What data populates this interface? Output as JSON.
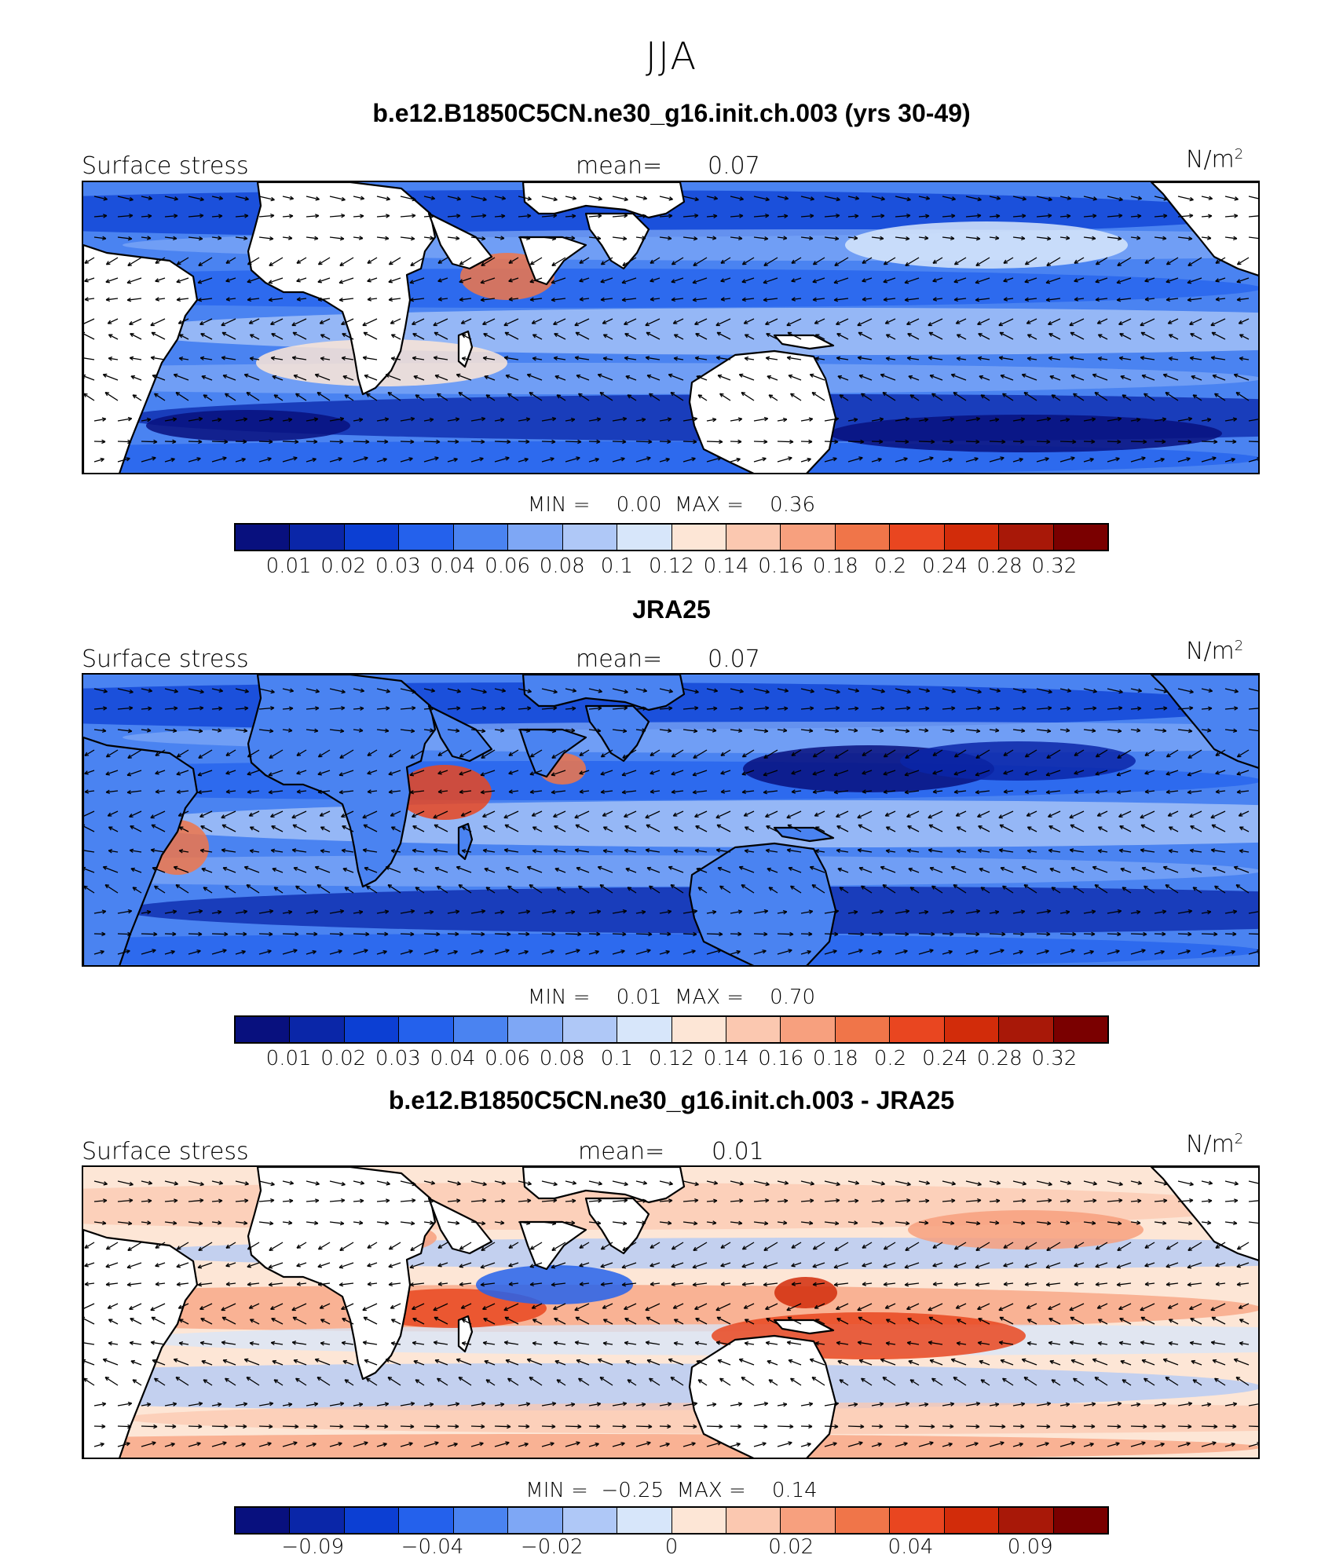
{
  "season": "JJA",
  "colors": {
    "ocean_scale": [
      "#08107e",
      "#0a26a8",
      "#0c3fd3",
      "#2461ec",
      "#4a83f1",
      "#7ea7f5",
      "#afc8f7",
      "#d7e6fa",
      "#fde6d6",
      "#fbc8b0",
      "#f7a07e",
      "#f07549",
      "#e94620",
      "#d22c0a",
      "#a81808",
      "#7a0000"
    ],
    "land": "#ffffff",
    "coast": "#000000"
  },
  "panels": [
    {
      "title": "b.e12.B1850C5CN.ne30_g16.init.ch.003 (yrs 30-49)",
      "left_label": "Surface stress",
      "mean_label": "mean=",
      "mean_value": "0.07",
      "unit": "N/m",
      "unit_sup": "2",
      "min_label": "MIN =",
      "min_value": "0.00",
      "max_label": "MAX =",
      "max_value": "0.36",
      "colorbar_ticks": [
        "0.01",
        "0.02",
        "0.03",
        "0.04",
        "0.06",
        "0.08",
        "0.1",
        "0.12",
        "0.14",
        "0.16",
        "0.18",
        "0.2",
        "0.24",
        "0.28",
        "0.32"
      ],
      "field": "model"
    },
    {
      "title": "JRA25",
      "left_label": "Surface stress",
      "mean_label": "mean=",
      "mean_value": "0.07",
      "unit": "N/m",
      "unit_sup": "2",
      "min_label": "MIN =",
      "min_value": "0.01",
      "max_label": "MAX =",
      "max_value": "0.70",
      "colorbar_ticks": [
        "0.01",
        "0.02",
        "0.03",
        "0.04",
        "0.06",
        "0.08",
        "0.1",
        "0.12",
        "0.14",
        "0.16",
        "0.18",
        "0.2",
        "0.24",
        "0.28",
        "0.32"
      ],
      "field": "obs"
    },
    {
      "title": "b.e12.B1850C5CN.ne30_g16.init.ch.003 - JRA25",
      "left_label": "Surface stress",
      "mean_label": "mean=",
      "mean_value": "0.01",
      "unit": "N/m",
      "unit_sup": "2",
      "min_label": "MIN =",
      "min_value": "−0.25",
      "max_label": "MAX =",
      "max_value": "0.14",
      "colorbar_ticks": [
        "−0.09",
        "",
        "−0.04",
        "",
        "−0.02",
        "",
        "0",
        "",
        "0.02",
        "",
        "0.04",
        "",
        "0.09"
      ],
      "field": "diff"
    }
  ]
}
